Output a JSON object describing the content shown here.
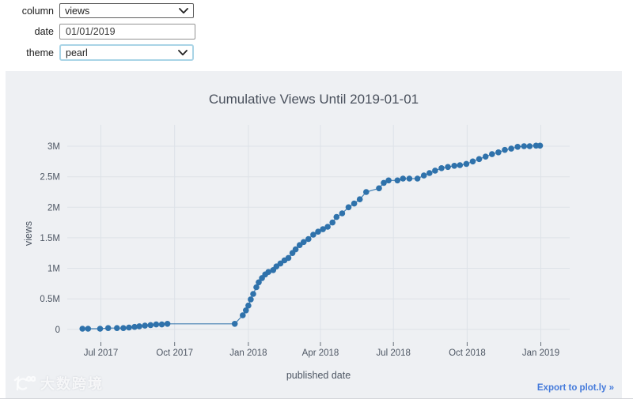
{
  "controls": {
    "column": {
      "label": "column",
      "value": "views"
    },
    "date": {
      "label": "date",
      "value": "01/01/2019"
    },
    "theme": {
      "label": "theme",
      "value": "pearl"
    }
  },
  "footer": {
    "watermark_text": "大数跨境",
    "export_label": "Export to plot.ly »"
  },
  "theme_colors": {
    "panel_bg": "#eef0f3",
    "grid": "#dde2e8",
    "text": "#4d5663",
    "marker": "#2f72ab",
    "link": "#447adb"
  },
  "chart_data": {
    "type": "scatter",
    "title": "Cumulative Views Until 2019-01-01",
    "xlabel": "published date",
    "ylabel": "views",
    "legend": "none",
    "grid": true,
    "marker_color": "#2f72ab",
    "x_ticks": [
      "Jul 2017",
      "Oct 2017",
      "Jan 2018",
      "Apr 2018",
      "Jul 2018",
      "Oct 2018",
      "Jan 2019"
    ],
    "x_tick_dates": [
      "2017-07-01",
      "2017-10-01",
      "2018-01-01",
      "2018-04-01",
      "2018-07-01",
      "2018-10-01",
      "2019-01-01"
    ],
    "y_ticks": [
      "0",
      "0.5M",
      "1M",
      "1.5M",
      "2M",
      "2.5M",
      "3M"
    ],
    "y_tick_values_millions": [
      0,
      0.5,
      1,
      1.5,
      2,
      2.5,
      3
    ],
    "x_range": [
      "2017-05-20",
      "2019-02-06"
    ],
    "y_range_millions": [
      -0.21,
      3.35
    ],
    "dates": [
      "2017-06-08",
      "2017-06-15",
      "2017-06-30",
      "2017-07-10",
      "2017-07-21",
      "2017-07-29",
      "2017-08-05",
      "2017-08-12",
      "2017-08-18",
      "2017-08-25",
      "2017-09-01",
      "2017-09-08",
      "2017-09-15",
      "2017-09-22",
      "2017-12-15",
      "2017-12-25",
      "2017-12-29",
      "2018-01-01",
      "2018-01-04",
      "2018-01-07",
      "2018-01-11",
      "2018-01-14",
      "2018-01-18",
      "2018-01-22",
      "2018-01-26",
      "2018-02-01",
      "2018-02-05",
      "2018-02-10",
      "2018-02-15",
      "2018-02-20",
      "2018-02-25",
      "2018-03-01",
      "2018-03-06",
      "2018-03-11",
      "2018-03-17",
      "2018-03-23",
      "2018-03-29",
      "2018-04-04",
      "2018-04-10",
      "2018-04-16",
      "2018-04-21",
      "2018-04-28",
      "2018-05-06",
      "2018-05-13",
      "2018-05-20",
      "2018-05-28",
      "2018-06-13",
      "2018-06-19",
      "2018-06-25",
      "2018-07-06",
      "2018-07-13",
      "2018-07-21",
      "2018-07-31",
      "2018-08-08",
      "2018-08-15",
      "2018-08-22",
      "2018-08-30",
      "2018-09-07",
      "2018-09-15",
      "2018-09-22",
      "2018-09-30",
      "2018-10-08",
      "2018-10-16",
      "2018-10-24",
      "2018-11-01",
      "2018-11-09",
      "2018-11-17",
      "2018-11-25",
      "2018-12-03",
      "2018-12-11",
      "2018-12-18",
      "2018-12-26",
      "2018-12-31"
    ],
    "views_millions": [
      0.01,
      0.01,
      0.01,
      0.02,
      0.02,
      0.02,
      0.03,
      0.04,
      0.05,
      0.06,
      0.07,
      0.08,
      0.08,
      0.09,
      0.09,
      0.23,
      0.31,
      0.39,
      0.49,
      0.58,
      0.69,
      0.77,
      0.84,
      0.9,
      0.94,
      0.97,
      1.03,
      1.08,
      1.13,
      1.17,
      1.25,
      1.31,
      1.38,
      1.43,
      1.48,
      1.55,
      1.6,
      1.64,
      1.68,
      1.75,
      1.84,
      1.9,
      2.0,
      2.06,
      2.13,
      2.25,
      2.31,
      2.4,
      2.44,
      2.44,
      2.47,
      2.47,
      2.47,
      2.52,
      2.56,
      2.6,
      2.64,
      2.66,
      2.68,
      2.69,
      2.71,
      2.75,
      2.79,
      2.83,
      2.87,
      2.9,
      2.94,
      2.96,
      2.99,
      3.0,
      3.0,
      3.01,
      3.01
    ]
  }
}
